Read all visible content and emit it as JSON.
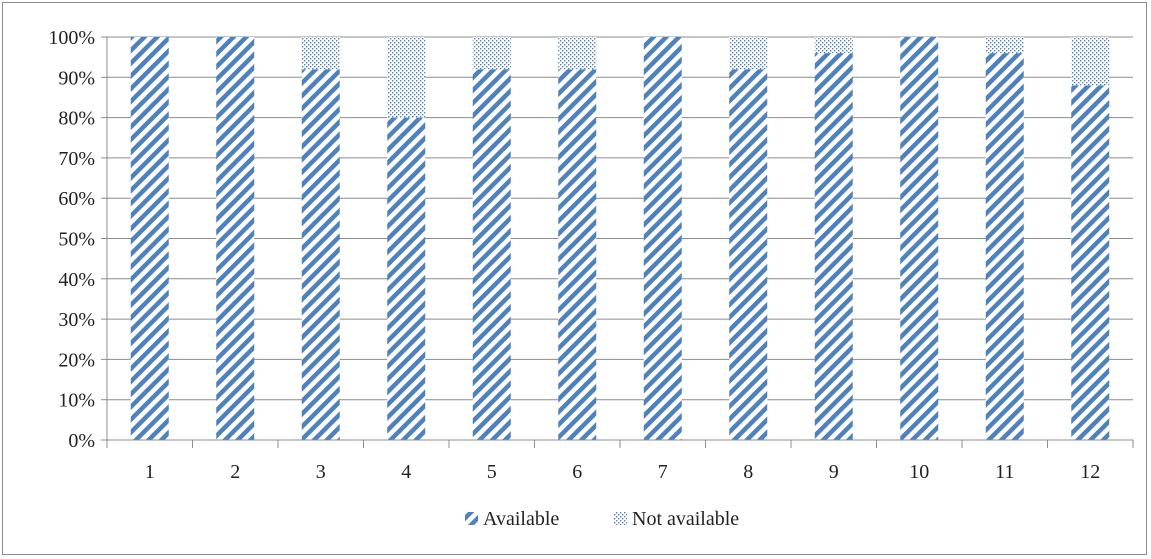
{
  "chart_data": {
    "type": "bar",
    "stacked": true,
    "percent_stacked": true,
    "categories": [
      "1",
      "2",
      "3",
      "4",
      "5",
      "6",
      "7",
      "8",
      "9",
      "10",
      "11",
      "12"
    ],
    "series": [
      {
        "name": "Available",
        "values": [
          100,
          100,
          92,
          80,
          92,
          92,
          100,
          92,
          96,
          100,
          96,
          88
        ]
      },
      {
        "name": "Not available",
        "values": [
          0,
          0,
          8,
          20,
          8,
          8,
          0,
          8,
          4,
          0,
          4,
          12
        ]
      }
    ],
    "y_ticks": [
      "0%",
      "10%",
      "20%",
      "30%",
      "40%",
      "50%",
      "60%",
      "70%",
      "80%",
      "90%",
      "100%"
    ],
    "ylim": [
      0,
      100
    ],
    "grid": true,
    "legend_position": "bottom",
    "colors": {
      "bar": "#4f81bd",
      "grid": "#8c8c8c",
      "axis": "#8c8c8c"
    }
  }
}
